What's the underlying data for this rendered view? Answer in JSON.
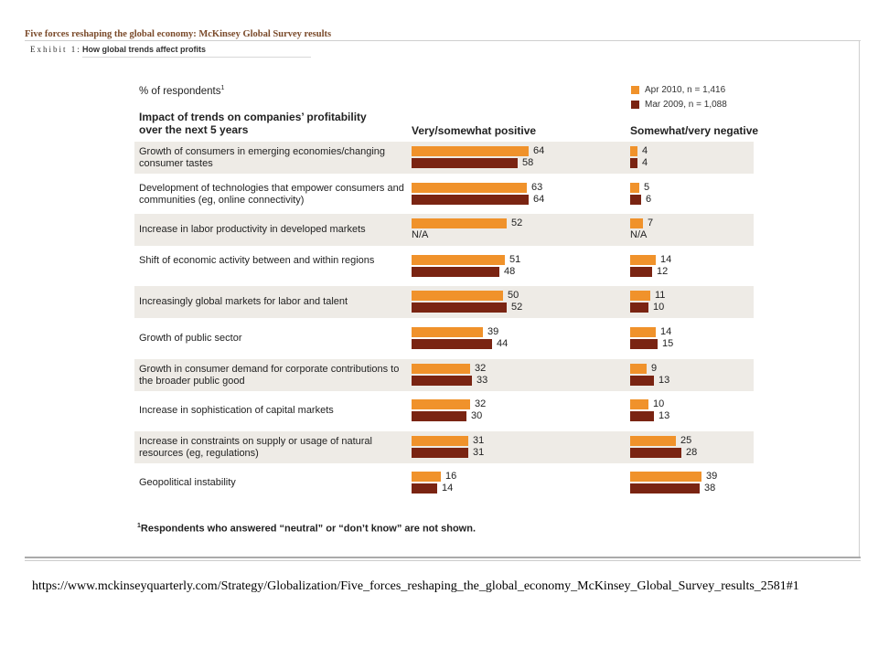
{
  "header": {
    "title": "Five forces reshaping the global economy: McKinsey Global Survey results",
    "exhibit_label": "Exhibit 1:",
    "exhibit_title": "How global trends affect profits"
  },
  "url": "https://www.mckinseyquarterly.com/Strategy/Globalization/Five_forces_reshaping_the_global_economy_McKinsey_Global_Survey_results_2581#1",
  "chart_data": {
    "type": "bar",
    "subtitle": "% of respondents",
    "subtitle_sup": "1",
    "category_header": "Impact of trends on companies’ profitability over the next 5 years",
    "panels": [
      "Very/somewhat positive",
      "Somewhat/very negative"
    ],
    "colors": {
      "apr2010": "#f0922b",
      "mar2009": "#7a2412",
      "row_bg": "#eeebe6"
    },
    "legend": [
      {
        "name": "Apr 2010, n = 1,416",
        "color": "#f0922b"
      },
      {
        "name": "Mar 2009, n = 1,088",
        "color": "#7a2412"
      }
    ],
    "legend_position": "top-right",
    "categories": [
      "Growth of consumers in emerging economies/changing consumer tastes",
      "Development of technologies that empower consumers and communities (eg, online connectivity)",
      "Increase in labor productivity in developed markets",
      "Shift of economic activity between and within regions",
      "Increasingly global markets for labor and talent",
      "Growth of public sector",
      "Growth in consumer demand for corporate contributions to the broader public good",
      "Increase in sophistication of capital markets",
      "Increase in constraints on supply or usage of natural resources (eg, regulations)",
      "Geopolitical instability"
    ],
    "series": [
      {
        "name": "Apr 2010, n = 1,416",
        "positive": [
          64,
          63,
          52,
          51,
          50,
          39,
          32,
          32,
          31,
          16
        ],
        "negative": [
          4,
          5,
          7,
          14,
          11,
          14,
          9,
          10,
          25,
          39
        ]
      },
      {
        "name": "Mar 2009, n = 1,088",
        "positive": [
          58,
          64,
          null,
          48,
          52,
          44,
          33,
          30,
          31,
          14
        ],
        "negative": [
          4,
          6,
          null,
          12,
          10,
          15,
          13,
          13,
          28,
          38
        ]
      }
    ],
    "missing_label": "N/A",
    "footnote_sup": "1",
    "footnote": "Respondents who answered “neutral” or “don’t know” are not shown."
  }
}
